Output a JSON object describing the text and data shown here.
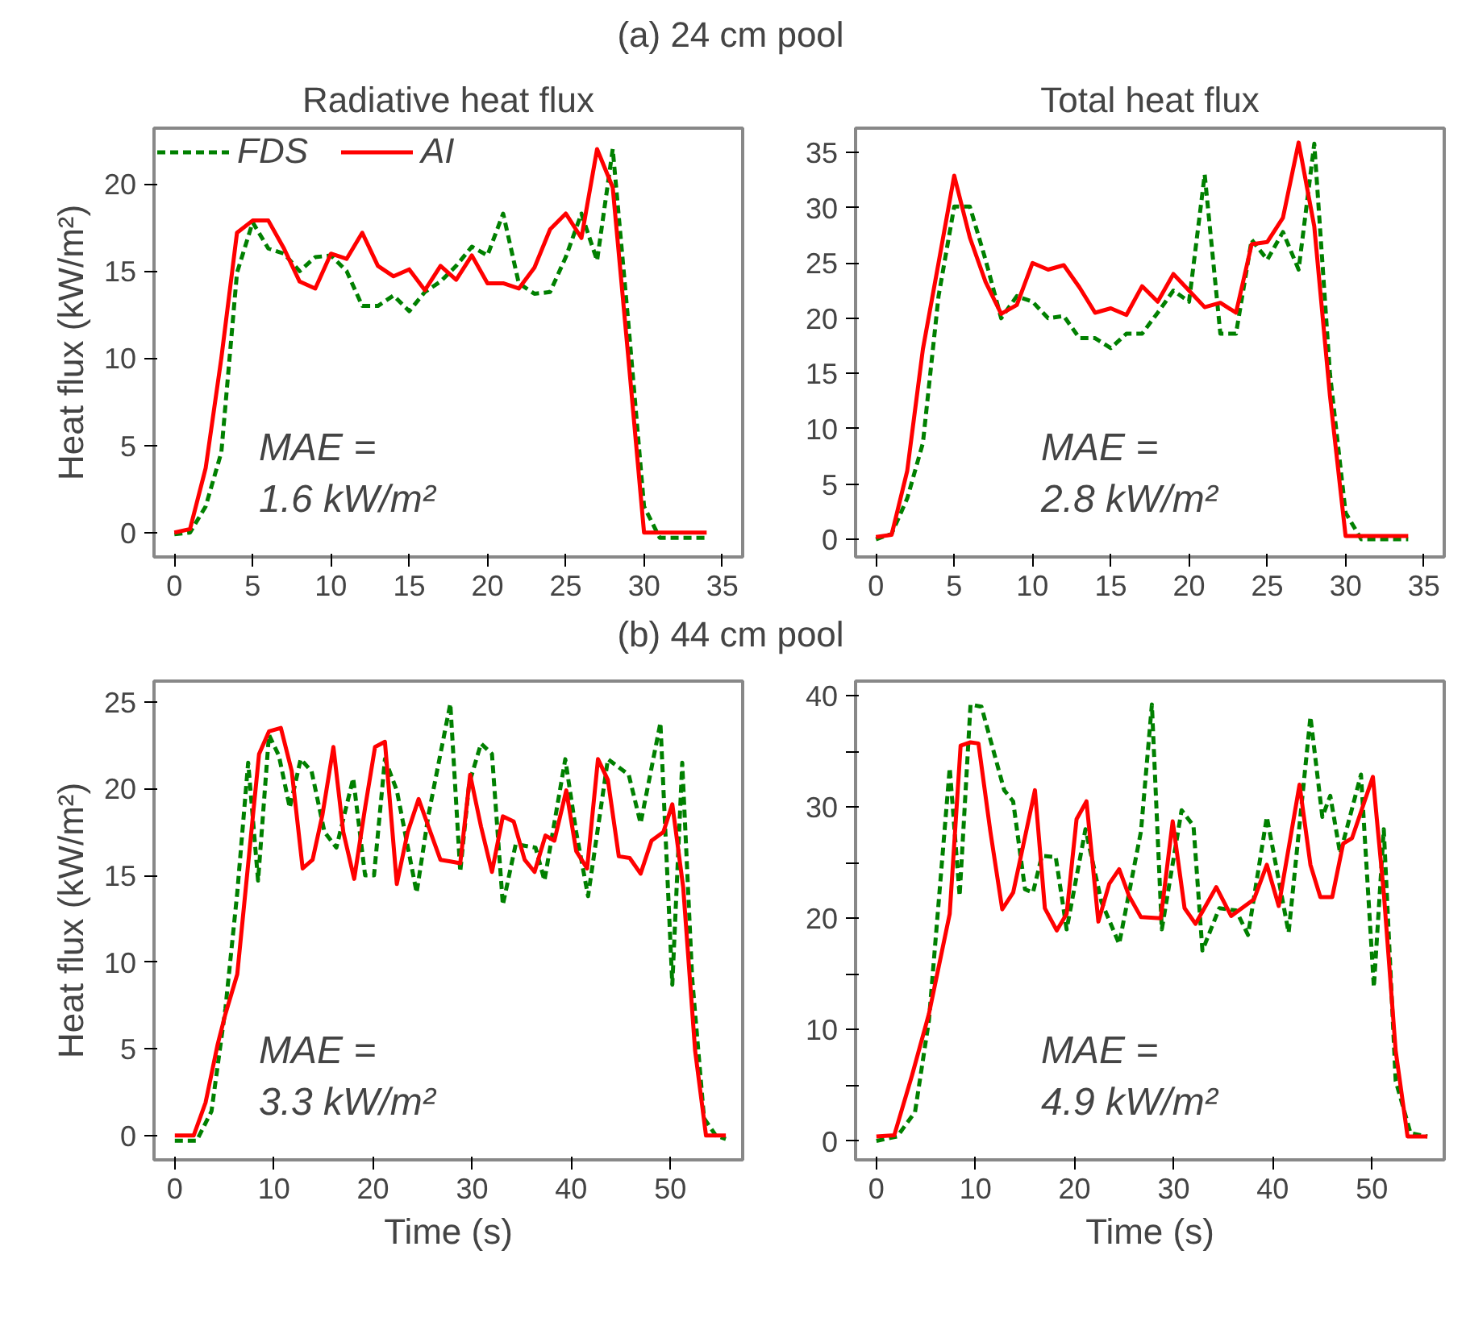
{
  "chart_data": [
    {
      "type": "other",
      "title": "(a) 24 cm pool"
    },
    {
      "type": "line",
      "title": "Radiative heat flux",
      "ylabel": "Heat flux (kW/m²)",
      "xlim": [
        -1.3,
        36.3
      ],
      "ylim": [
        -1.4,
        23.2
      ],
      "xticks": [
        0,
        5,
        10,
        15,
        20,
        25,
        30,
        35
      ],
      "yticks": [
        0,
        5,
        10,
        15,
        20
      ],
      "grid": false,
      "legend": "top left",
      "annotations": [
        "MAE =\n1.6 kW/m²"
      ],
      "x": [
        0,
        1,
        2,
        3,
        4,
        5,
        6,
        7,
        8,
        9,
        10,
        11,
        12,
        13,
        14,
        15,
        16,
        17,
        18,
        19,
        20,
        21,
        22,
        23,
        24,
        25,
        26,
        27,
        28,
        29,
        30,
        31,
        32,
        33,
        34
      ],
      "series": [
        {
          "name": "FDS",
          "color": "#008000",
          "line_style": "dashed",
          "values": [
            -0.1,
            0,
            1.5,
            4.6,
            14.9,
            17.8,
            16.3,
            16.0,
            15.0,
            15.8,
            15.9,
            15.0,
            13.0,
            13.0,
            13.6,
            12.7,
            13.8,
            14.4,
            15.3,
            16.4,
            15.9,
            18.3,
            14.3,
            13.7,
            13.8,
            15.8,
            18.3,
            15.6,
            22.0,
            12.0,
            1.5,
            -0.3,
            -0.3,
            -0.3,
            -0.3
          ]
        },
        {
          "name": "AI",
          "color": "#ff0000",
          "line_style": "solid",
          "values": [
            0,
            0.2,
            3.7,
            10,
            17.2,
            17.9,
            17.9,
            16.3,
            14.4,
            14.0,
            16.0,
            15.7,
            17.2,
            15.3,
            14.7,
            15.1,
            13.9,
            15.3,
            14.5,
            15.9,
            14.3,
            14.3,
            14.0,
            15.2,
            17.4,
            18.3,
            16.9,
            22.0,
            19.8,
            10.0,
            0,
            0,
            0,
            0,
            0
          ]
        }
      ]
    },
    {
      "type": "line",
      "title": "Total heat flux",
      "xlim": [
        -1.3,
        36.3
      ],
      "ylim": [
        -1.6,
        37.2
      ],
      "xticks": [
        0,
        5,
        10,
        15,
        20,
        25,
        30,
        35
      ],
      "yticks": [
        0,
        5,
        10,
        15,
        20,
        25,
        30,
        35
      ],
      "grid": false,
      "annotations": [
        "MAE =\n2.8 kW/m²"
      ],
      "x": [
        0,
        1,
        2,
        3,
        4,
        5,
        6,
        7,
        8,
        9,
        10,
        11,
        12,
        13,
        14,
        15,
        16,
        17,
        18,
        19,
        20,
        21,
        22,
        23,
        24,
        25,
        26,
        27,
        28,
        29,
        30,
        31,
        32,
        33,
        34
      ],
      "series": [
        {
          "color": "#008000",
          "line_style": "dashed",
          "values": [
            0,
            0.5,
            3.7,
            8.7,
            22.0,
            30.1,
            30.1,
            25.3,
            20.0,
            22.0,
            21.5,
            20.0,
            20.2,
            18.2,
            18.2,
            17.3,
            18.6,
            18.6,
            20.5,
            22.5,
            21.5,
            33.0,
            18.6,
            18.6,
            27.1,
            25.3,
            27.8,
            24.4,
            35.8,
            15.0,
            2.4,
            0,
            0,
            0,
            0
          ]
        },
        {
          "color": "#ff0000",
          "line_style": "solid",
          "values": [
            0.2,
            0.4,
            6.2,
            17.2,
            25.0,
            32.9,
            27.3,
            23.3,
            20.4,
            21.2,
            25.0,
            24.4,
            24.8,
            22.8,
            20.5,
            20.9,
            20.3,
            22.9,
            21.5,
            24.0,
            22.5,
            21.0,
            21.4,
            20.5,
            26.7,
            26.9,
            29.1,
            35.9,
            28.3,
            13.0,
            0.3,
            0.3,
            0.3,
            0.3,
            0.3
          ]
        }
      ]
    },
    {
      "type": "other",
      "title": "(b) 44 cm pool"
    },
    {
      "type": "line",
      "ylabel": "Heat flux (kW/m²)",
      "xlabel": "Time (s)",
      "xlim": [
        -2.1,
        57.3
      ],
      "ylim": [
        -1.4,
        26.2
      ],
      "xticks": [
        0,
        10,
        20,
        30,
        40,
        50
      ],
      "yticks": [
        0,
        5,
        10,
        15,
        20,
        25
      ],
      "grid": false,
      "annotations": [
        "MAE =\n3.3 kW/m²"
      ],
      "series": [
        {
          "color": "#008000",
          "line_style": "dashed",
          "x": [
            0,
            2.2,
            3.7,
            5.1,
            6.3,
            7.4,
            8.4,
            9.5,
            10.5,
            11.6,
            12.7,
            13.8,
            15.1,
            16.3,
            18.0,
            19.2,
            20.1,
            21.2,
            22.4,
            24.4,
            25.6,
            26.8,
            27.8,
            28.8,
            29.7,
            30.9,
            32.0,
            33.1,
            34.4,
            36.4,
            37.3,
            39.4,
            40.5,
            41.7,
            43.7,
            45.8,
            47.0,
            49.0,
            50.2,
            51.2,
            52.2,
            53.4,
            54.6,
            55.6
          ],
          "values": [
            -0.3,
            -0.3,
            1.4,
            7.3,
            14.0,
            21.5,
            14.7,
            23.1,
            21.9,
            18.9,
            21.7,
            21.0,
            17.5,
            16.6,
            20.6,
            15.0,
            15.0,
            21.7,
            19.9,
            14.0,
            18.5,
            22.0,
            24.9,
            15.2,
            20.3,
            22.6,
            22.0,
            13.3,
            16.8,
            16.6,
            14.7,
            21.7,
            17.5,
            13.8,
            21.7,
            20.8,
            18.0,
            23.8,
            8.7,
            21.5,
            9.1,
            1.0,
            0,
            -0.2
          ]
        },
        {
          "color": "#ff0000",
          "line_style": "solid",
          "x": [
            0,
            1.9,
            3.1,
            4.3,
            5.1,
            6.3,
            8.5,
            9.5,
            10.7,
            11.8,
            12.9,
            13.9,
            14.9,
            16.0,
            17.0,
            18.1,
            19.2,
            20.2,
            21.2,
            22.4,
            23.5,
            24.6,
            25.6,
            26.8,
            27.8,
            28.8,
            29.8,
            30.9,
            32.0,
            33.1,
            34.2,
            35.3,
            36.3,
            37.4,
            38.3,
            39.5,
            40.5,
            41.6,
            42.7,
            43.7,
            44.8,
            45.9,
            47.0,
            48.1,
            49.3,
            50.2,
            51.3,
            52.5,
            53.6,
            55.6
          ],
          "values": [
            0,
            0,
            1.9,
            5.2,
            7.0,
            9.3,
            22.0,
            23.3,
            23.5,
            21.0,
            15.4,
            15.9,
            18.5,
            22.4,
            17.5,
            14.8,
            18.9,
            22.4,
            22.7,
            14.5,
            17.5,
            19.4,
            17.8,
            15.9,
            15.8,
            15.7,
            20.8,
            17.8,
            15.2,
            18.4,
            18.1,
            15.9,
            15.2,
            17.3,
            17.0,
            19.9,
            16.4,
            15.4,
            21.7,
            20.5,
            16.1,
            16.0,
            15.1,
            17.0,
            17.5,
            19.1,
            14.3,
            4.9,
            0,
            0
          ]
        }
      ]
    },
    {
      "type": "line",
      "xlabel": "Time (s)",
      "xlim": [
        -2.1,
        57.3
      ],
      "ylim": [
        -1.7,
        41.3
      ],
      "xticks": [
        0,
        10,
        20,
        30,
        40,
        50
      ],
      "yticks": [
        0,
        {
          "value": 5,
          "label": null
        },
        10,
        {
          "value": 15,
          "label": null
        },
        20,
        {
          "value": 25,
          "label": null
        },
        30,
        {
          "value": 35,
          "label": null
        },
        40
      ],
      "grid": false,
      "annotations": [
        "MAE =\n4.9 kW/m²"
      ],
      "series": [
        {
          "color": "#008000",
          "line_style": "dashed",
          "x": [
            0,
            2.1,
            3.9,
            5.3,
            7.4,
            8.4,
            9.5,
            10.6,
            12.9,
            13.8,
            15.0,
            15.8,
            16.7,
            18.1,
            19.2,
            21.1,
            22.7,
            24.5,
            26.7,
            27.8,
            28.8,
            30.8,
            32.0,
            32.9,
            34.6,
            36.3,
            37.5,
            39.4,
            41.6,
            43.8,
            45.0,
            45.8,
            46.8,
            48.9,
            50.2,
            51.2,
            52.4,
            53.9,
            55.6
          ],
          "values": [
            0,
            0.4,
            2.6,
            10.8,
            33.5,
            22.0,
            39.2,
            39.0,
            31.5,
            30.5,
            22.6,
            22.3,
            25.6,
            25.5,
            19.0,
            28.0,
            21.5,
            17.7,
            27.8,
            39.2,
            19.0,
            29.7,
            28.3,
            17.1,
            20.9,
            20.7,
            18.5,
            29.1,
            18.7,
            38.1,
            29.1,
            31.0,
            25.8,
            32.9,
            13.8,
            28.0,
            5.4,
            0.7,
            0.4
          ]
        },
        {
          "color": "#ff0000",
          "line_style": "solid",
          "x": [
            0,
            1.8,
            3.6,
            5.3,
            7.4,
            8.5,
            9.5,
            10.3,
            11.5,
            12.7,
            13.8,
            16.0,
            17.0,
            18.2,
            19.2,
            20.2,
            21.2,
            22.4,
            23.5,
            24.5,
            25.5,
            26.7,
            28.7,
            29.9,
            31.1,
            32.2,
            34.3,
            35.8,
            38.1,
            39.4,
            40.6,
            42.7,
            43.8,
            44.8,
            46.0,
            47.1,
            48.0,
            50.1,
            51.2,
            52.4,
            53.6,
            55.6
          ],
          "values": [
            0.4,
            0.5,
            5.9,
            11.4,
            20.4,
            35.5,
            35.8,
            35.7,
            27.8,
            20.8,
            22.3,
            31.5,
            20.9,
            18.9,
            20.4,
            28.9,
            30.5,
            19.7,
            23.1,
            24.4,
            22.0,
            20.1,
            20.0,
            28.7,
            20.9,
            19.5,
            22.8,
            20.2,
            21.7,
            24.8,
            21.1,
            32.0,
            24.8,
            21.9,
            21.9,
            26.7,
            27.2,
            32.7,
            22.3,
            8.1,
            0.4,
            0.4
          ]
        }
      ]
    }
  ]
}
